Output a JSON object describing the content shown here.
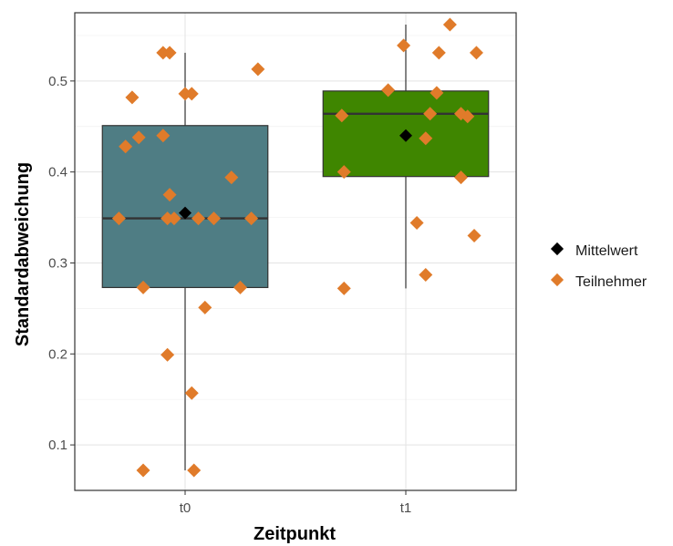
{
  "chart_data": {
    "type": "box",
    "xlabel": "Zeitpunkt",
    "ylabel": "Standardabweichung",
    "categories": [
      "t0",
      "t1"
    ],
    "ylim": [
      0.05,
      0.575
    ],
    "yticks": [
      0.1,
      0.2,
      0.3,
      0.4,
      0.5
    ],
    "ytick_labels": [
      "0.1",
      "0.2",
      "0.3",
      "0.4",
      "0.5"
    ],
    "grid": true,
    "legend_position": "right",
    "legend": [
      {
        "label": "Mittelwert",
        "color": "#000000"
      },
      {
        "label": "Teilnehmer",
        "color": "#e07b2a"
      }
    ],
    "boxes": [
      {
        "category": "t0",
        "color": "#4f7d84",
        "whisker_low": 0.072,
        "q1": 0.273,
        "median": 0.349,
        "q3": 0.451,
        "whisker_high": 0.531,
        "mean": 0.355
      },
      {
        "category": "t1",
        "color": "#3f8600",
        "whisker_low": 0.272,
        "q1": 0.395,
        "median": 0.464,
        "q3": 0.489,
        "whisker_high": 0.562,
        "mean": 0.44
      }
    ],
    "points": [
      {
        "category": "t0",
        "jitter": -0.19,
        "y": 0.072
      },
      {
        "category": "t0",
        "jitter": 0.04,
        "y": 0.072
      },
      {
        "category": "t0",
        "jitter": 0.03,
        "y": 0.157
      },
      {
        "category": "t0",
        "jitter": -0.08,
        "y": 0.199
      },
      {
        "category": "t0",
        "jitter": 0.09,
        "y": 0.251
      },
      {
        "category": "t0",
        "jitter": -0.19,
        "y": 0.273
      },
      {
        "category": "t0",
        "jitter": 0.25,
        "y": 0.273
      },
      {
        "category": "t0",
        "jitter": -0.3,
        "y": 0.349
      },
      {
        "category": "t0",
        "jitter": -0.08,
        "y": 0.349
      },
      {
        "category": "t0",
        "jitter": -0.05,
        "y": 0.349
      },
      {
        "category": "t0",
        "jitter": 0.06,
        "y": 0.349
      },
      {
        "category": "t0",
        "jitter": 0.13,
        "y": 0.349
      },
      {
        "category": "t0",
        "jitter": 0.3,
        "y": 0.349
      },
      {
        "category": "t0",
        "jitter": -0.07,
        "y": 0.375
      },
      {
        "category": "t0",
        "jitter": 0.21,
        "y": 0.394
      },
      {
        "category": "t0",
        "jitter": -0.27,
        "y": 0.428
      },
      {
        "category": "t0",
        "jitter": -0.21,
        "y": 0.438
      },
      {
        "category": "t0",
        "jitter": -0.1,
        "y": 0.44
      },
      {
        "category": "t0",
        "jitter": -0.24,
        "y": 0.482
      },
      {
        "category": "t0",
        "jitter": 0.0,
        "y": 0.486
      },
      {
        "category": "t0",
        "jitter": 0.03,
        "y": 0.486
      },
      {
        "category": "t0",
        "jitter": 0.33,
        "y": 0.513
      },
      {
        "category": "t0",
        "jitter": -0.1,
        "y": 0.531
      },
      {
        "category": "t0",
        "jitter": -0.07,
        "y": 0.531
      },
      {
        "category": "t1",
        "jitter": -0.28,
        "y": 0.272
      },
      {
        "category": "t1",
        "jitter": 0.09,
        "y": 0.287
      },
      {
        "category": "t1",
        "jitter": 0.31,
        "y": 0.33
      },
      {
        "category": "t1",
        "jitter": 0.05,
        "y": 0.344
      },
      {
        "category": "t1",
        "jitter": -0.28,
        "y": 0.4
      },
      {
        "category": "t1",
        "jitter": 0.25,
        "y": 0.394
      },
      {
        "category": "t1",
        "jitter": 0.09,
        "y": 0.437
      },
      {
        "category": "t1",
        "jitter": -0.29,
        "y": 0.462
      },
      {
        "category": "t1",
        "jitter": 0.11,
        "y": 0.464
      },
      {
        "category": "t1",
        "jitter": 0.25,
        "y": 0.464
      },
      {
        "category": "t1",
        "jitter": 0.28,
        "y": 0.461
      },
      {
        "category": "t1",
        "jitter": 0.14,
        "y": 0.487
      },
      {
        "category": "t1",
        "jitter": -0.08,
        "y": 0.49
      },
      {
        "category": "t1",
        "jitter": 0.15,
        "y": 0.531
      },
      {
        "category": "t1",
        "jitter": 0.32,
        "y": 0.531
      },
      {
        "category": "t1",
        "jitter": -0.01,
        "y": 0.539
      },
      {
        "category": "t1",
        "jitter": 0.2,
        "y": 0.562
      }
    ]
  }
}
